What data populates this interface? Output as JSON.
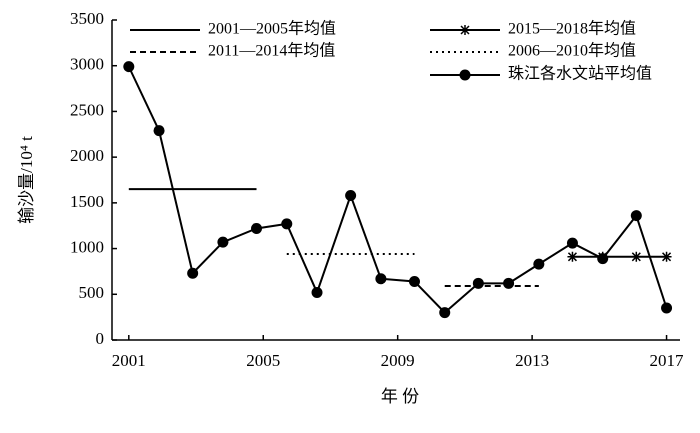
{
  "chart_data": {
    "type": "line",
    "xlabel": "年 份",
    "ylabel": "输沙量/10⁴ t",
    "xlim": [
      2000.5,
      2017.4
    ],
    "xticks": [
      2001,
      2005,
      2009,
      2013,
      2017
    ],
    "ylim": [
      0,
      3500
    ],
    "yticks": [
      0,
      500,
      1000,
      1500,
      2000,
      2500,
      3000,
      3500
    ],
    "series": [
      {
        "name": "2001—2005年均值",
        "style": "solid",
        "color": "#000",
        "x": [
          2001,
          2004.8
        ],
        "values": [
          1650,
          1650
        ]
      },
      {
        "name": "2015—2018年均值",
        "style": "star",
        "color": "#000",
        "x": [
          2014.2,
          2015.1,
          2016.1,
          2017
        ],
        "values": [
          910,
          910,
          910,
          910
        ]
      },
      {
        "name": "2011—2014年均值",
        "style": "dashed",
        "color": "#000",
        "x": [
          2010.4,
          2013.2
        ],
        "values": [
          590,
          590
        ]
      },
      {
        "name": "2006—2010年均值",
        "style": "dotted",
        "color": "#000",
        "x": [
          2005.7,
          2009.5
        ],
        "values": [
          940,
          940
        ]
      },
      {
        "name": "珠江各水文站平均值",
        "style": "dot",
        "color": "#000",
        "x": [
          2001,
          2001.9,
          2002.9,
          2003.8,
          2004.8,
          2005.7,
          2006.6,
          2007.6,
          2008.5,
          2009.5,
          2010.4,
          2011.4,
          2012.3,
          2013.2,
          2014.2,
          2015.1,
          2016.1,
          2017
        ],
        "values": [
          2990,
          2290,
          730,
          1070,
          1220,
          1270,
          520,
          1580,
          670,
          640,
          300,
          620,
          620,
          830,
          1060,
          890,
          1360,
          350
        ]
      }
    ]
  }
}
